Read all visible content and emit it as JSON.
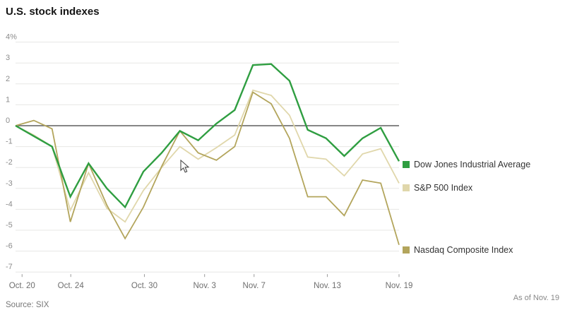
{
  "header": {
    "title": "U.S. stock indexes"
  },
  "source_label": "Source: SIX",
  "as_of_label": "As of Nov. 19",
  "chart_data": {
    "type": "line",
    "title": "U.S. stock indexes",
    "ylabel": "percent change",
    "ylim": [
      -7,
      4
    ],
    "grid": true,
    "zero_line": true,
    "legend_position": "right of line ends",
    "y_tick_labels": [
      "4%",
      "3",
      "2",
      "1",
      "0",
      "-1",
      "-2",
      "-3",
      "-4",
      "-5",
      "-6",
      "-7"
    ],
    "y_tick_values": [
      4,
      3,
      2,
      1,
      0,
      -1,
      -2,
      -3,
      -4,
      -5,
      -6,
      -7
    ],
    "x_tick_labels": [
      {
        "label": "Oct. 20",
        "pos": 0.017
      },
      {
        "label": "Oct. 24",
        "pos": 0.144
      },
      {
        "label": "Oct. 30",
        "pos": 0.336
      },
      {
        "label": "Nov. 3",
        "pos": 0.493
      },
      {
        "label": "Nov. 7",
        "pos": 0.622
      },
      {
        "label": "Nov. 13",
        "pos": 0.813
      },
      {
        "label": "Nov. 19",
        "pos": 1.0
      }
    ],
    "x": [
      "Oct. 19",
      "Oct. 22",
      "Oct. 23",
      "Oct. 24",
      "Oct. 25",
      "Oct. 26",
      "Oct. 29",
      "Oct. 30",
      "Oct. 31",
      "Nov. 1",
      "Nov. 2",
      "Nov. 5",
      "Nov. 6",
      "Nov. 7",
      "Nov. 8",
      "Nov. 9",
      "Nov. 12",
      "Nov. 13",
      "Nov. 14",
      "Nov. 15",
      "Nov. 16",
      "Nov. 19"
    ],
    "series": [
      {
        "name": "S&P 500 Index",
        "color": "#e0d7ab",
        "values": [
          0,
          -0.45,
          -1.0,
          -4.05,
          -2.25,
          -3.95,
          -4.6,
          -3.1,
          -2.0,
          -1.0,
          -1.6,
          -1.05,
          -0.45,
          1.7,
          1.45,
          0.5,
          -1.5,
          -1.6,
          -2.4,
          -1.35,
          -1.1,
          -2.75
        ]
      },
      {
        "name": "Nasdaq Composite Index",
        "color": "#b3a55c",
        "values": [
          0,
          0.25,
          -0.15,
          -4.6,
          -1.8,
          -3.8,
          -5.4,
          -3.9,
          -1.95,
          -0.25,
          -1.3,
          -1.65,
          -1.0,
          1.6,
          1.05,
          -0.6,
          -3.4,
          -3.4,
          -4.3,
          -2.6,
          -2.75,
          -5.7
        ]
      },
      {
        "name": "Dow Jones Industrial Average",
        "color": "#2f9e41",
        "values": [
          0,
          -0.5,
          -1.0,
          -3.4,
          -1.8,
          -3.0,
          -3.9,
          -2.2,
          -1.3,
          -0.25,
          -0.7,
          0.1,
          0.75,
          2.9,
          2.95,
          2.15,
          -0.2,
          -0.6,
          -1.45,
          -0.6,
          -0.1,
          -1.7
        ]
      }
    ],
    "legend_order": [
      2,
      0,
      1
    ]
  }
}
